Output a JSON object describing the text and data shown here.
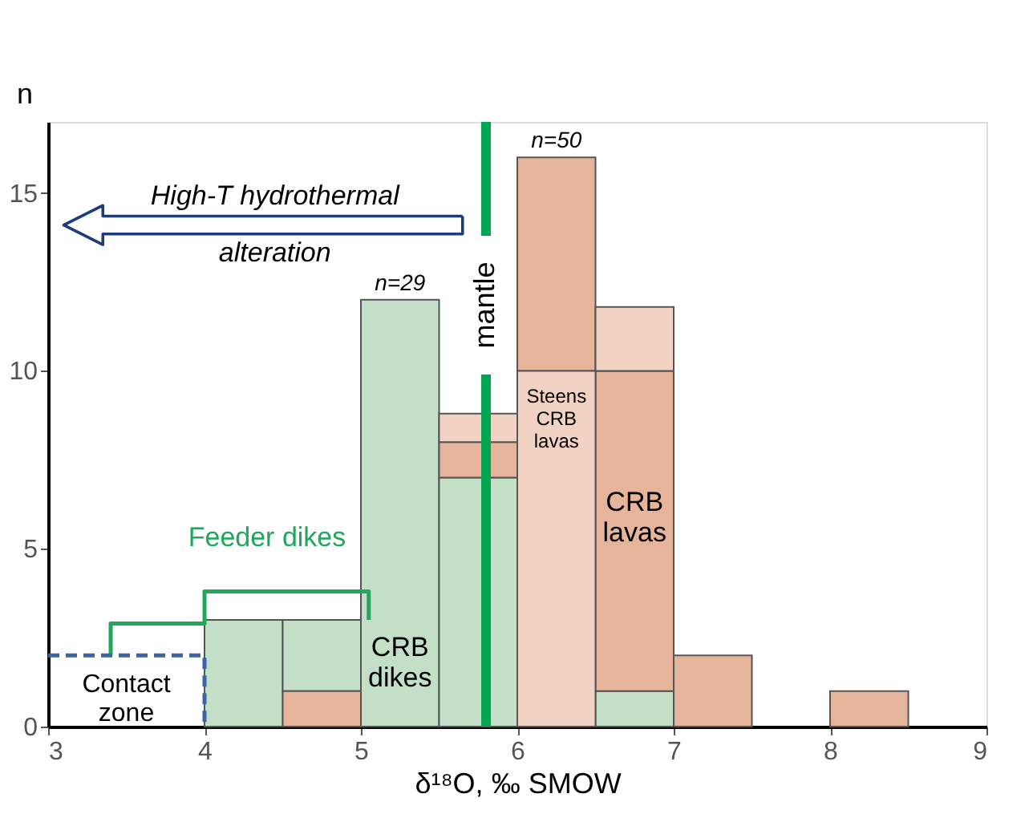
{
  "chart_data": {
    "type": "histogram",
    "xlabel": "δ¹⁸O, ‰ SMOW",
    "ylabel": "n",
    "bins": [
      3,
      3.5,
      4,
      4.5,
      5,
      5.5,
      6,
      6.5,
      7,
      7.5,
      8,
      8.5,
      9
    ],
    "series": [
      {
        "name": "CRB dikes",
        "color": "#c4dfc8",
        "values": [
          null,
          null,
          3,
          2,
          12,
          7,
          null,
          1,
          null,
          null,
          null,
          null
        ],
        "base": [
          null,
          null,
          0,
          1,
          0,
          0,
          null,
          0,
          null,
          null,
          null,
          null
        ]
      },
      {
        "name": "CRB lavas",
        "color": "#e6b49a",
        "values": [
          null,
          null,
          null,
          1,
          null,
          1,
          6,
          9,
          2,
          null,
          1,
          null
        ],
        "base": [
          null,
          null,
          null,
          0,
          null,
          7,
          10,
          1,
          0,
          null,
          0,
          null
        ]
      },
      {
        "name": "Steens CRB lavas",
        "color": "#f2d2c2",
        "values": [
          null,
          null,
          null,
          null,
          null,
          0.8,
          10,
          1.8,
          null,
          null,
          null,
          null
        ],
        "base": [
          null,
          null,
          null,
          null,
          null,
          8,
          0,
          10,
          null,
          null,
          null,
          null
        ]
      },
      {
        "name": "Feeder dikes",
        "type": "line",
        "color": "#1fa85a",
        "x": [
          3.4,
          3.4,
          4,
          4,
          5.05,
          5.05
        ],
        "values": [
          2,
          2.9,
          2.9,
          3.8,
          3.8,
          3
        ]
      },
      {
        "name": "Contact zone",
        "type": "line",
        "line_style": "dashed",
        "color": "#3c64a8",
        "x": [
          3,
          4,
          4
        ],
        "values": [
          2,
          2,
          0
        ]
      }
    ],
    "ref_lines": [
      {
        "axis": "x",
        "value": 5.8,
        "label": "mantle",
        "color": "#00a651"
      }
    ],
    "annotations": [
      {
        "text": "n=29",
        "x": 5.25,
        "y": 12
      },
      {
        "text": "n=50",
        "x": 6.25,
        "y": 16
      },
      "High-T hydrothermal",
      "alteration"
    ],
    "xlim": [
      3,
      9
    ],
    "xticks": [
      3,
      4,
      5,
      6,
      7,
      8,
      9
    ],
    "ylim": [
      0,
      17
    ],
    "yticks": [
      0,
      5,
      10,
      15
    ],
    "grid": false,
    "legend": false
  }
}
